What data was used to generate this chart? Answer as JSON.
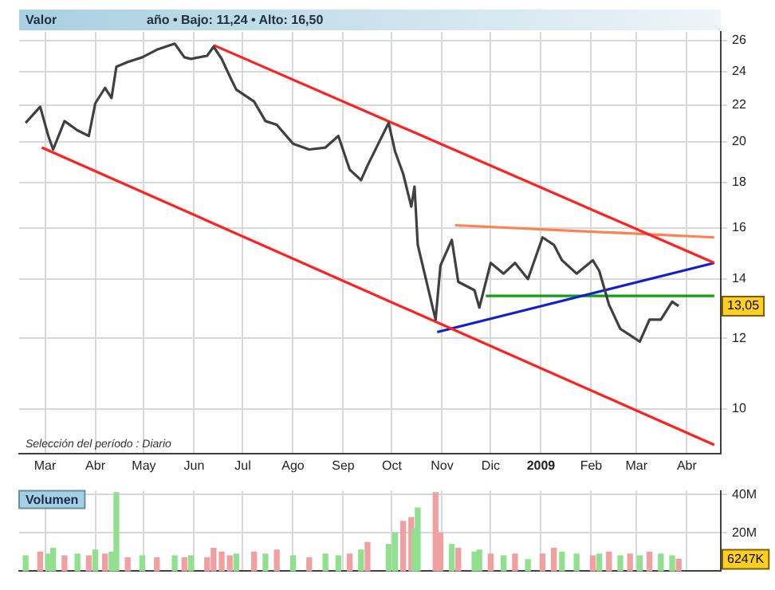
{
  "chart_data": [
    {
      "type": "line",
      "annotations": [
        "Valor",
        "año • Bajo: 11,24 • Alto: 16,50",
        "Selección del período : Diario",
        "13,05"
      ],
      "xlim": [
        "2008-02-14",
        "2009-04-22"
      ],
      "xticks": [
        {
          "value": "2008-03-01",
          "label": "Mar"
        },
        {
          "value": "2008-04-01",
          "label": "Abr"
        },
        {
          "value": "2008-05-01",
          "label": "May"
        },
        {
          "value": "2008-06-01",
          "label": "Jun"
        },
        {
          "value": "2008-07-01",
          "label": "Jul"
        },
        {
          "value": "2008-08-01",
          "label": "Ago"
        },
        {
          "value": "2008-09-01",
          "label": "Sep"
        },
        {
          "value": "2008-10-01",
          "label": "Oct"
        },
        {
          "value": "2008-11-01",
          "label": "Nov"
        },
        {
          "value": "2008-12-01",
          "label": "Dic"
        },
        {
          "value": "2009-01-01",
          "label": "2009"
        },
        {
          "value": "2009-02-01",
          "label": "Feb"
        },
        {
          "value": "2009-03-01",
          "label": "Mar"
        },
        {
          "value": "2009-04-01",
          "label": "Abr"
        }
      ],
      "ylim": [
        8.9,
        26.6
      ],
      "yticks": [
        10,
        12,
        14,
        16,
        18,
        20,
        22,
        24,
        26
      ],
      "log": true,
      "grid": true,
      "marker": "none",
      "line_style": "solid",
      "series": [
        {
          "color": "#404040",
          "x": [
            "2008-02-18",
            "2008-02-27",
            "2008-03-03",
            "2008-03-06",
            "2008-03-13",
            "2008-03-21",
            "2008-03-28",
            "2008-04-01",
            "2008-04-07",
            "2008-04-11",
            "2008-04-14",
            "2008-04-21",
            "2008-04-30",
            "2008-05-09",
            "2008-05-20",
            "2008-05-26",
            "2008-05-30",
            "2008-06-09",
            "2008-06-13",
            "2008-06-18",
            "2008-06-23",
            "2008-06-27",
            "2008-07-08",
            "2008-07-15",
            "2008-07-22",
            "2008-08-01",
            "2008-08-11",
            "2008-08-21",
            "2008-08-29",
            "2008-09-05",
            "2008-09-12",
            "2008-09-16",
            "2008-09-29",
            "2008-10-03",
            "2008-10-08",
            "2008-10-13",
            "2008-10-15",
            "2008-10-17",
            "2008-10-28",
            "2008-10-31",
            "2008-11-07",
            "2008-11-11",
            "2008-11-21",
            "2008-11-24",
            "2008-12-01",
            "2008-12-09",
            "2008-12-16",
            "2008-12-24",
            "2009-01-02",
            "2009-01-09",
            "2009-01-14",
            "2009-01-23",
            "2009-02-02",
            "2009-02-06",
            "2009-02-12",
            "2009-02-19",
            "2009-02-25",
            "2009-03-03",
            "2009-03-09",
            "2009-03-16",
            "2009-03-23",
            "2009-03-27"
          ],
          "values": [
            21.0,
            21.9,
            20.3,
            19.6,
            21.1,
            20.6,
            20.3,
            22.1,
            23.0,
            22.4,
            24.3,
            24.6,
            24.9,
            25.4,
            25.8,
            24.9,
            24.8,
            25.0,
            25.6,
            24.8,
            23.7,
            22.9,
            22.2,
            21.1,
            20.9,
            19.9,
            19.6,
            19.7,
            20.3,
            18.6,
            18.1,
            18.8,
            21.0,
            19.5,
            18.4,
            16.9,
            17.8,
            15.3,
            12.6,
            14.5,
            15.5,
            13.9,
            13.6,
            13.0,
            14.6,
            14.2,
            14.6,
            14.0,
            15.6,
            15.3,
            14.7,
            14.2,
            14.7,
            14.3,
            13.1,
            12.3,
            12.1,
            11.9,
            12.6,
            12.6,
            13.2,
            13.05
          ]
        },
        {
          "color": "#ff2020",
          "x": [
            "2008-06-13",
            "2009-04-18"
          ],
          "values": [
            25.7,
            14.6
          ]
        },
        {
          "color": "#ff2020",
          "x": [
            "2008-02-28",
            "2009-04-18"
          ],
          "values": [
            19.7,
            9.1
          ]
        },
        {
          "color": "#ff8050",
          "x": [
            "2008-11-09",
            "2009-04-18"
          ],
          "values": [
            16.1,
            15.6
          ]
        },
        {
          "color": "#1020d0",
          "x": [
            "2008-10-29",
            "2009-04-18"
          ],
          "values": [
            12.2,
            14.6
          ]
        },
        {
          "color": "#10a010",
          "x": [
            "2008-11-28",
            "2009-04-18"
          ],
          "values": [
            13.4,
            13.4
          ]
        }
      ]
    },
    {
      "type": "bar",
      "title": "Volumen",
      "tick_labels": "y",
      "grid": true,
      "annotations": [
        "6247K"
      ],
      "xlim": [
        "2008-02-14",
        "2009-04-22"
      ],
      "xticks": [
        {
          "value": "2008-03-01",
          "label": null
        },
        {
          "value": "2008-04-01",
          "label": null
        },
        {
          "value": "2008-05-01",
          "label": null
        },
        {
          "value": "2008-06-01",
          "label": null
        },
        {
          "value": "2008-07-01",
          "label": null
        },
        {
          "value": "2008-08-01",
          "label": null
        },
        {
          "value": "2008-09-01",
          "label": null
        },
        {
          "value": "2008-10-01",
          "label": null
        },
        {
          "value": "2008-11-01",
          "label": null
        },
        {
          "value": "2008-12-01",
          "label": null
        },
        {
          "value": "2009-01-01",
          "label": null
        },
        {
          "value": "2009-02-01",
          "label": null
        },
        {
          "value": "2009-03-01",
          "label": null
        },
        {
          "value": "2009-04-01",
          "label": null
        }
      ],
      "ylim": [
        0,
        42
      ],
      "yticks": [
        {
          "value": 20,
          "label": "20M"
        },
        {
          "value": 40,
          "label": "40M"
        }
      ],
      "x": [
        "2008-02-18",
        "2008-02-27",
        "2008-03-03",
        "2008-03-06",
        "2008-03-13",
        "2008-03-21",
        "2008-03-28",
        "2008-04-01",
        "2008-04-07",
        "2008-04-11",
        "2008-04-14",
        "2008-04-21",
        "2008-04-30",
        "2008-05-09",
        "2008-05-20",
        "2008-05-26",
        "2008-05-30",
        "2008-06-09",
        "2008-06-13",
        "2008-06-18",
        "2008-06-23",
        "2008-06-27",
        "2008-07-08",
        "2008-07-15",
        "2008-07-22",
        "2008-08-01",
        "2008-08-11",
        "2008-08-21",
        "2008-08-29",
        "2008-09-05",
        "2008-09-12",
        "2008-09-16",
        "2008-09-29",
        "2008-10-03",
        "2008-10-08",
        "2008-10-13",
        "2008-10-15",
        "2008-10-17",
        "2008-10-28",
        "2008-10-31",
        "2008-11-07",
        "2008-11-11",
        "2008-11-21",
        "2008-11-24",
        "2008-12-01",
        "2008-12-09",
        "2008-12-16",
        "2008-12-24",
        "2009-01-02",
        "2009-01-09",
        "2009-01-14",
        "2009-01-23",
        "2009-02-02",
        "2009-02-06",
        "2009-02-12",
        "2009-02-19",
        "2009-02-25",
        "2009-03-03",
        "2009-03-09",
        "2009-03-16",
        "2009-03-23",
        "2009-03-27"
      ],
      "values": [
        8,
        10,
        9,
        12,
        8,
        9,
        8,
        11,
        9,
        10,
        41,
        7,
        8,
        7,
        8,
        7,
        8,
        7,
        12,
        10,
        8,
        9,
        10,
        9,
        11,
        8,
        7,
        9,
        8,
        9,
        11,
        15,
        14,
        20,
        26,
        28,
        22,
        33,
        41,
        20,
        14,
        12,
        10,
        11,
        9,
        8,
        9,
        6,
        9,
        12,
        10,
        9,
        8,
        9,
        10,
        8,
        9,
        8,
        10,
        9,
        8,
        6.2
      ],
      "colors": [
        "#90e090",
        "#f0a0a0",
        "#90e090",
        "#90e090",
        "#f0a0a0",
        "#90e090",
        "#f0a0a0",
        "#90e090",
        "#f0a0a0",
        "#90e090",
        "#90e090",
        "#f0a0a0",
        "#90e090",
        "#f0a0a0",
        "#90e090",
        "#f0a0a0",
        "#90e090",
        "#f0a0a0",
        "#f0a0a0",
        "#f0a0a0",
        "#f0a0a0",
        "#90e090",
        "#f0a0a0",
        "#90e090",
        "#f0a0a0",
        "#90e090",
        "#f0a0a0",
        "#90e090",
        "#90e090",
        "#f0a0a0",
        "#90e090",
        "#f0a0a0",
        "#90e090",
        "#90e090",
        "#f0a0a0",
        "#f0a0a0",
        "#90e090",
        "#90e090",
        "#f0a0a0",
        "#f0a0a0",
        "#90e090",
        "#f0a0a0",
        "#90e090",
        "#90e090",
        "#f0a0a0",
        "#90e090",
        "#f0a0a0",
        "#90e090",
        "#f0a0a0",
        "#f0a0a0",
        "#90e090",
        "#90e090",
        "#f0a0a0",
        "#90e090",
        "#f0a0a0",
        "#90e090",
        "#f0a0a0",
        "#90e090",
        "#f0a0a0",
        "#90e090",
        "#90e090",
        "#f0a0a0"
      ]
    }
  ]
}
